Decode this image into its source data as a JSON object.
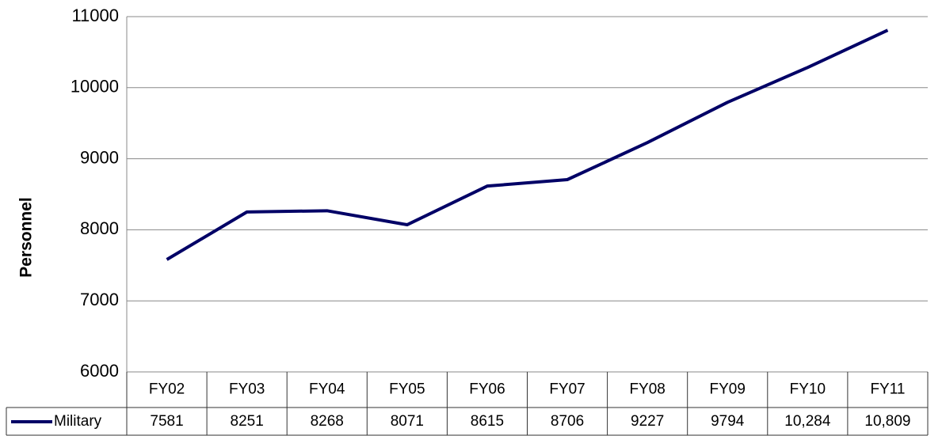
{
  "chart_data": {
    "type": "line",
    "y_axis_label": "Personnel",
    "categories": [
      "FY02",
      "FY03",
      "FY04",
      "FY05",
      "FY06",
      "FY07",
      "FY08",
      "FY09",
      "FY10",
      "FY11"
    ],
    "series": [
      {
        "name": "Military",
        "color": "#000066",
        "values": [
          7581,
          8251,
          8268,
          8071,
          8615,
          8706,
          9227,
          9794,
          10284,
          10809
        ],
        "value_labels": [
          "7581",
          "8251",
          "8268",
          "8071",
          "8615",
          "8706",
          "9227",
          "9794",
          "10,284",
          "10,809"
        ]
      }
    ],
    "ylim": [
      6000,
      11000
    ],
    "yticks": [
      6000,
      7000,
      8000,
      9000,
      10000,
      11000
    ],
    "grid": true
  }
}
